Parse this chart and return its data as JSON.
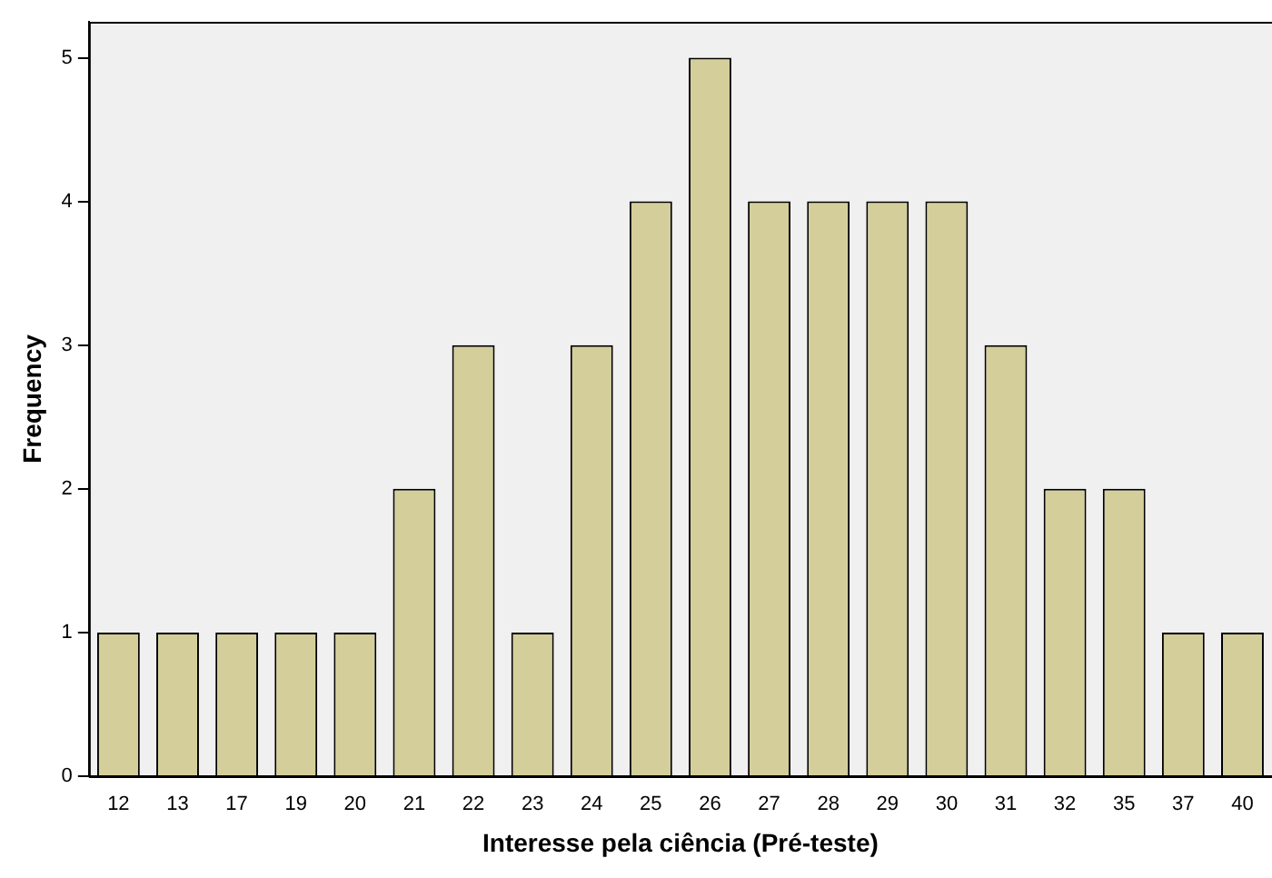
{
  "chart_data": {
    "type": "bar",
    "xlabel": "Interesse pela ciência (Pré-teste)",
    "ylabel": "Frequency",
    "categories": [
      "12",
      "13",
      "17",
      "19",
      "20",
      "21",
      "22",
      "23",
      "24",
      "25",
      "26",
      "27",
      "28",
      "29",
      "30",
      "31",
      "32",
      "35",
      "37",
      "40"
    ],
    "values": [
      1,
      1,
      1,
      1,
      1,
      2,
      3,
      1,
      3,
      4,
      5,
      4,
      4,
      4,
      4,
      3,
      2,
      2,
      1,
      1
    ],
    "color": "#d4cf9a",
    "ylim": [
      0,
      5.25
    ],
    "yticks": [
      0,
      1,
      2,
      3,
      4,
      5
    ],
    "grid": false,
    "legend": false
  }
}
